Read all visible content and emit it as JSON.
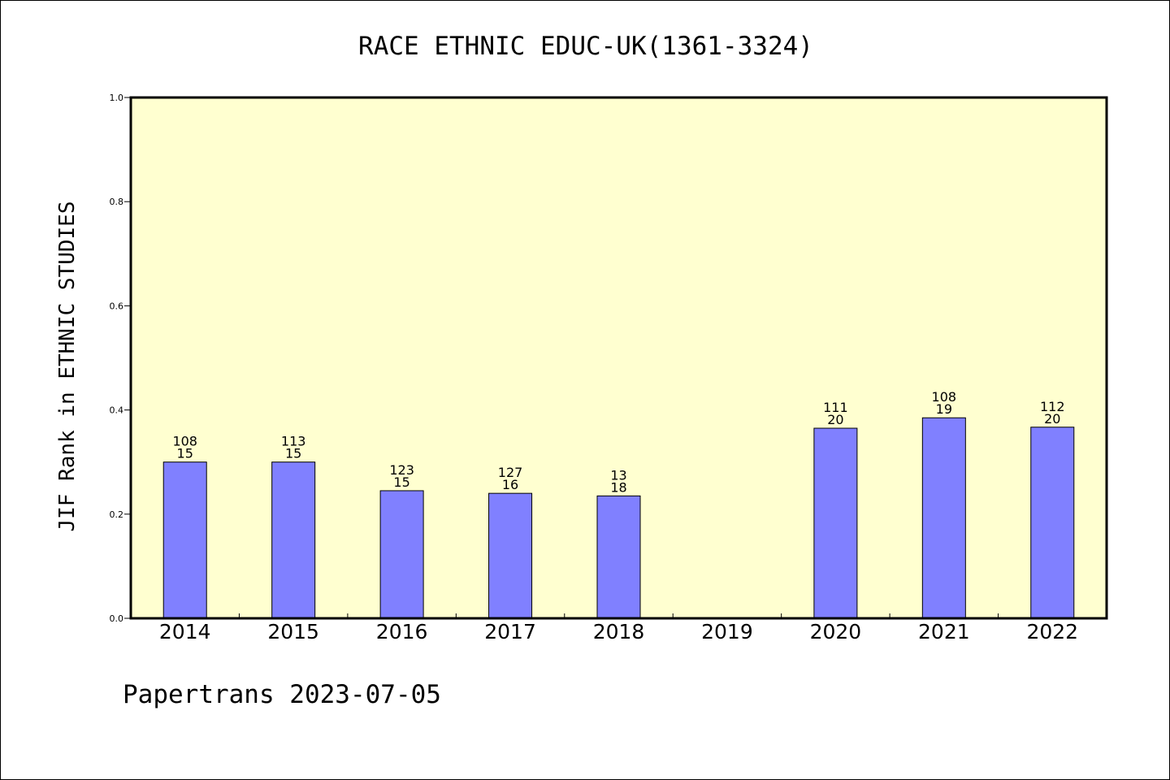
{
  "chart_data": {
    "type": "bar",
    "title": "RACE ETHNIC EDUC-UK(1361-3324)",
    "xlabel": "",
    "ylabel": "JIF Rank in ETHNIC STUDIES",
    "ylim": [
      0,
      1.0
    ],
    "yticks": [
      "0.0",
      "0.2",
      "0.4",
      "0.6",
      "0.8",
      "1.0"
    ],
    "grid": false,
    "legend": "none",
    "categories": [
      "2014",
      "2015",
      "2016",
      "2017",
      "2018",
      "2019",
      "2020",
      "2021",
      "2022"
    ],
    "values": [
      0.3,
      0.3,
      0.245,
      0.24,
      0.235,
      null,
      0.365,
      0.385,
      0.367
    ],
    "labels_top": [
      "108",
      "113",
      "123",
      "127",
      "13",
      "",
      "111",
      "108",
      "112"
    ],
    "labels_bottom": [
      "15",
      "15",
      "15",
      "16",
      "18",
      "",
      "20",
      "19",
      "20"
    ],
    "colors": {
      "plot_bg": "#ffffd0",
      "bar_fill": "#8080ff",
      "bar_stroke": "#000000"
    }
  },
  "footer": "Papertrans 2023-07-05"
}
